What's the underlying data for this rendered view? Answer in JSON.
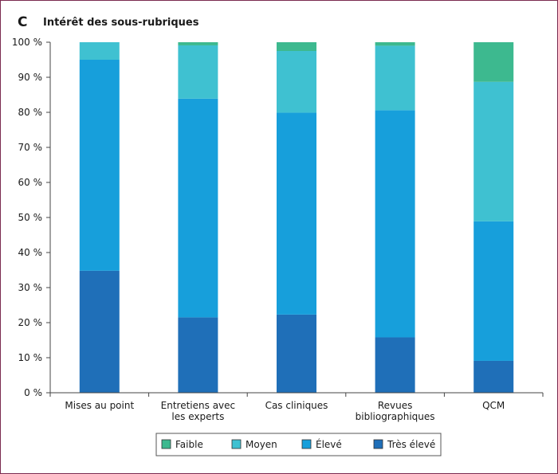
{
  "panel_letter": "C",
  "chart_data": {
    "type": "bar",
    "stacked": true,
    "title": "Intérêt des sous-rubriques",
    "xlabel": "",
    "ylabel": "",
    "ylim": [
      0,
      100
    ],
    "y_ticks": [
      "0 %",
      "10 %",
      "20 %",
      "30 %",
      "40 %",
      "50 %",
      "60 %",
      "70 %",
      "80 %",
      "90 %",
      "100 %"
    ],
    "categories": [
      [
        "Mises au point"
      ],
      [
        "Entretiens avec",
        "les experts"
      ],
      [
        "Cas cliniques"
      ],
      [
        "Revues",
        "bibliographiques"
      ],
      [
        "QCM"
      ]
    ],
    "series": [
      {
        "name": "Très élevé",
        "color": "#1f6fb8",
        "values": [
          34.8,
          21.5,
          22.3,
          15.8,
          9.1
        ]
      },
      {
        "name": "Élevé",
        "color": "#179fdb",
        "values": [
          60.2,
          62.4,
          57.6,
          64.8,
          39.8
        ]
      },
      {
        "name": "Moyen",
        "color": "#3fc1d1",
        "values": [
          5.0,
          15.2,
          17.6,
          18.4,
          39.8
        ]
      },
      {
        "name": "Faible",
        "color": "#3db98f",
        "values": [
          0.0,
          0.9,
          2.5,
          1.0,
          11.3
        ]
      }
    ],
    "legend_order": [
      "Faible",
      "Moyen",
      "Élevé",
      "Très élevé"
    ],
    "grid": false,
    "legend_position": "bottom"
  }
}
